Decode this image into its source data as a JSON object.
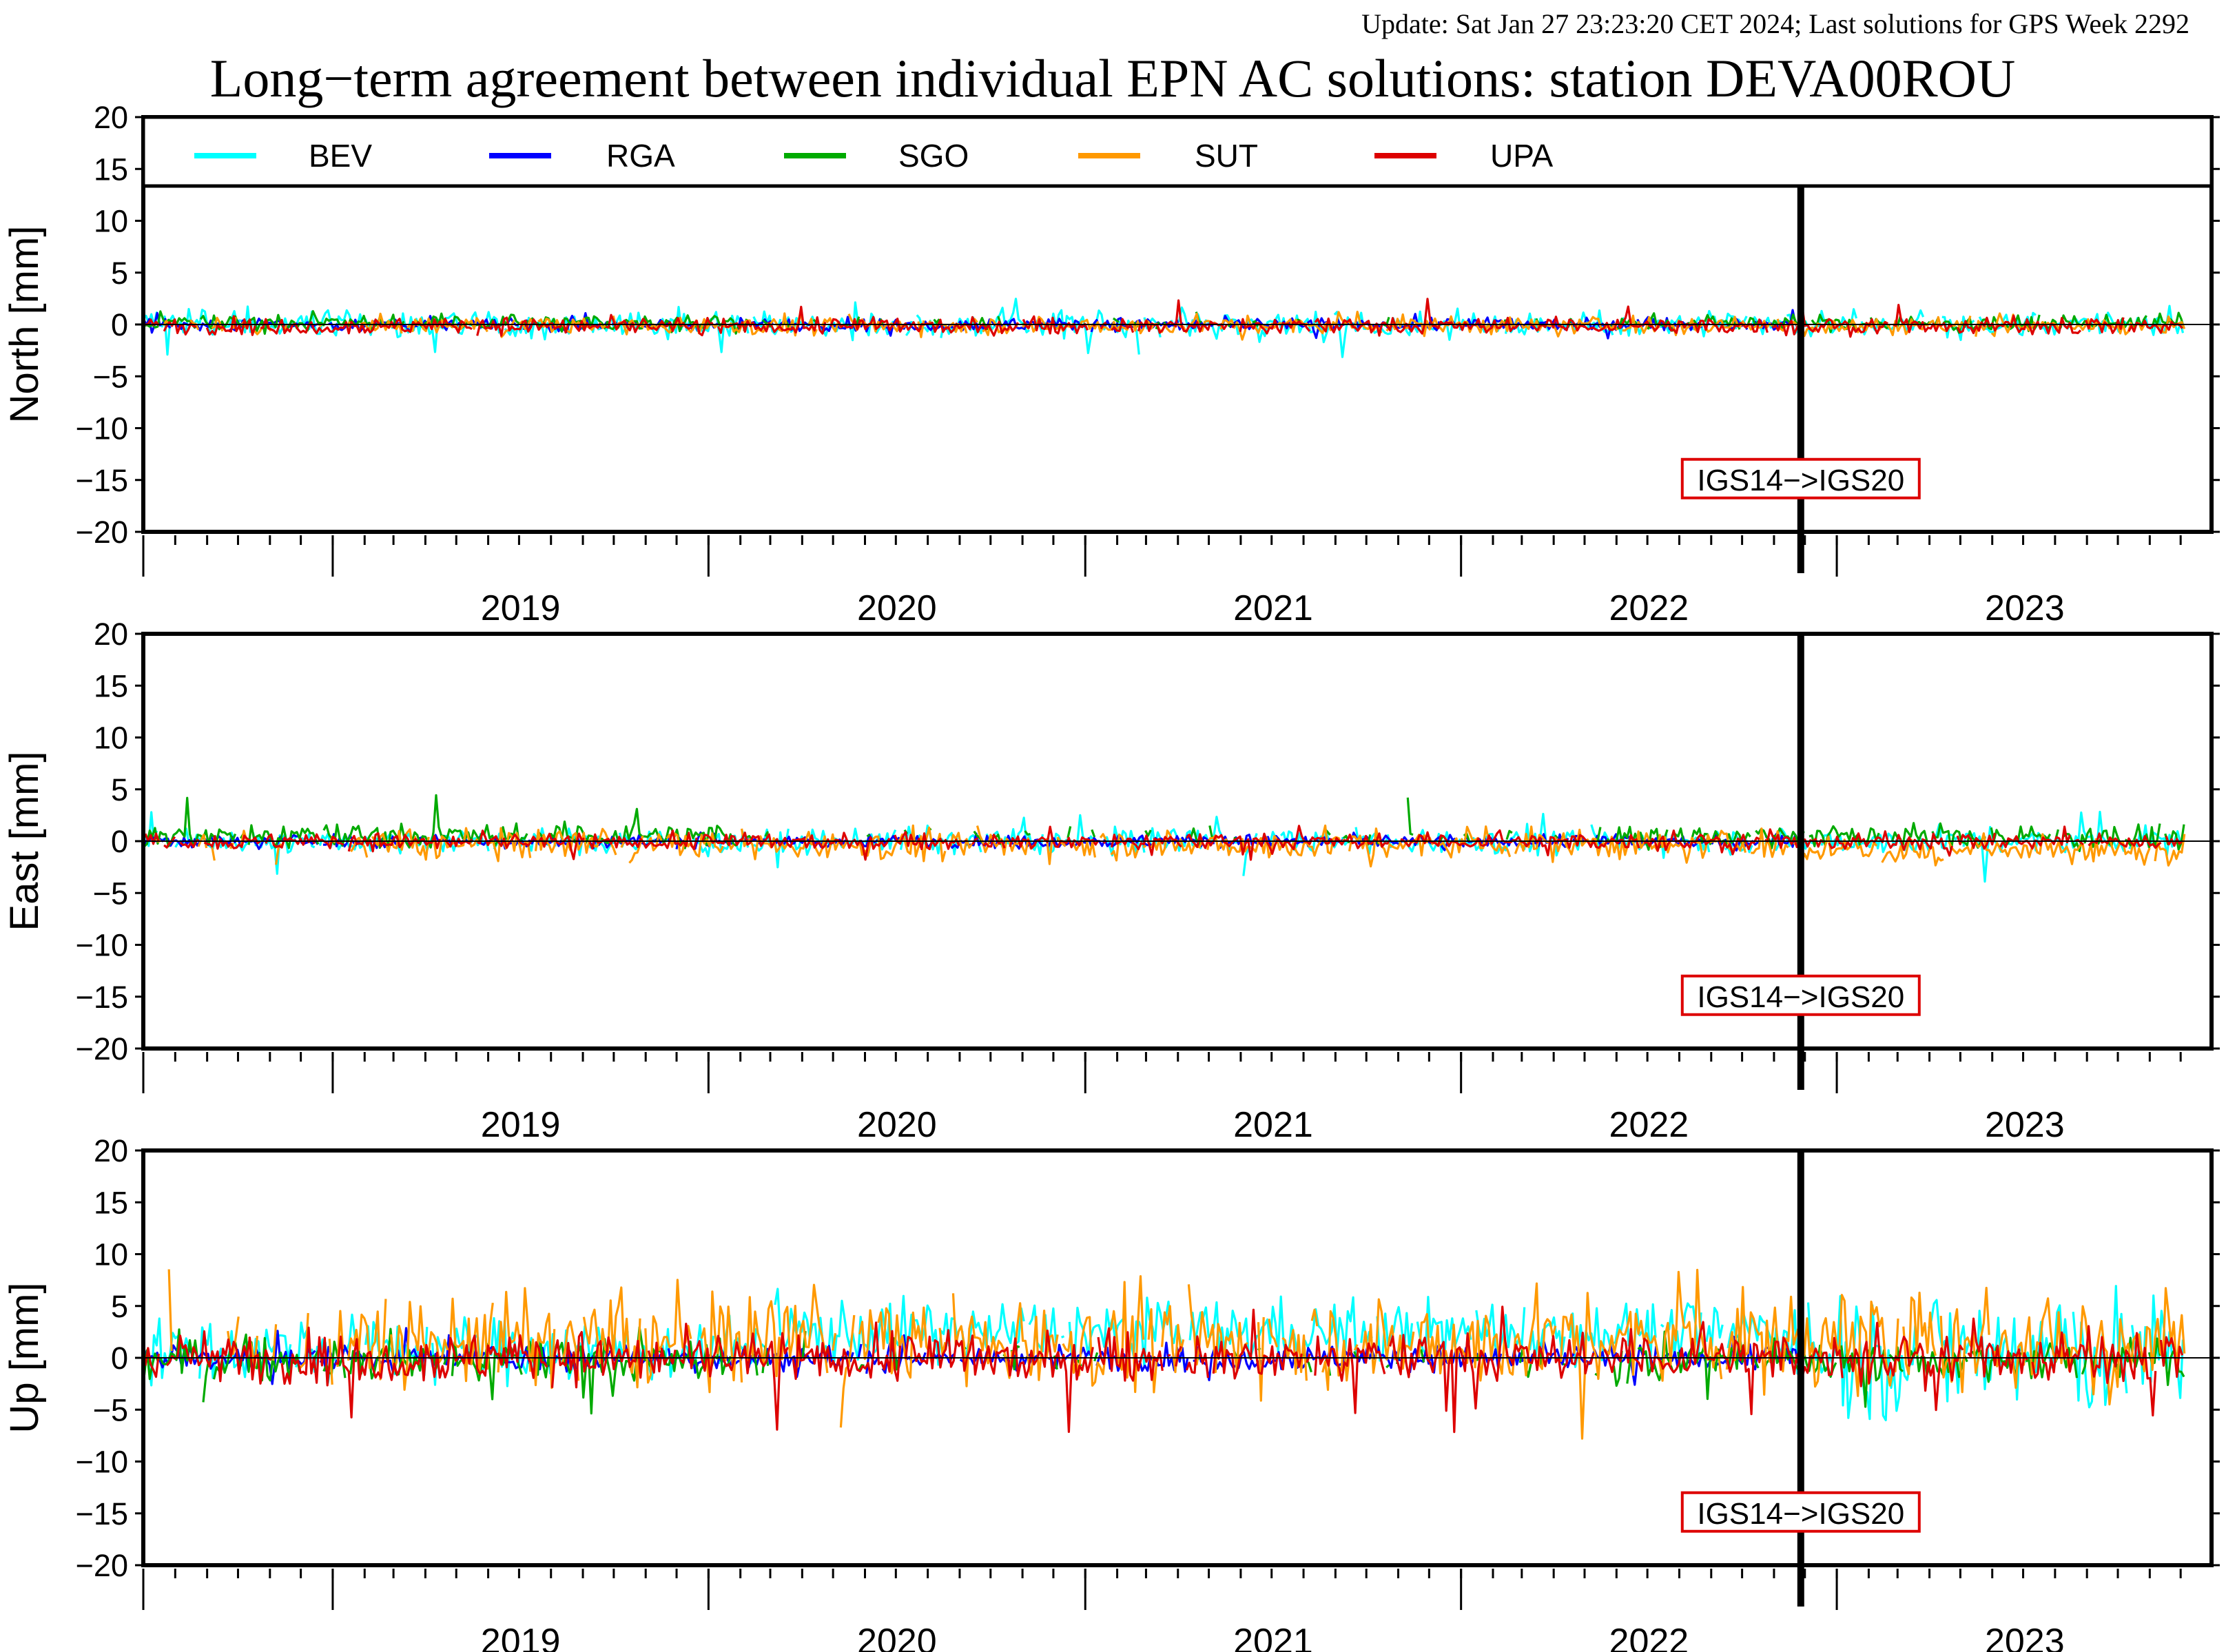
{
  "header": {
    "update_text": "Update: Sat Jan 27 23:23:20 CET 2024; Last solutions for GPS Week 2292",
    "update_color": "#8b1a1a",
    "title": "Long−term agreement between individual EPN AC solutions: station DEVA00ROU"
  },
  "chart_data": {
    "type": "line",
    "title": "Long−term agreement between individual EPN AC solutions: station DEVA00ROU",
    "x_range": [
      "2018-07-01",
      "2023-12-31"
    ],
    "year_labels": [
      "2019",
      "2020",
      "2021",
      "2022",
      "2023"
    ],
    "ylim": [
      -20,
      20
    ],
    "yticks": [
      20,
      15,
      10,
      5,
      0,
      -5,
      -10,
      -15,
      -20
    ],
    "ytick_labels": [
      "20",
      "15",
      "10",
      "5",
      "0",
      "−5",
      "−10",
      "−15",
      "−20"
    ],
    "grid": false,
    "legend_position": "top",
    "series": [
      {
        "name": "BEV",
        "color": "#00ffff"
      },
      {
        "name": "RGA",
        "color": "#0000ff"
      },
      {
        "name": "SGO",
        "color": "#00aa00"
      },
      {
        "name": "SUT",
        "color": "#ff9900"
      },
      {
        "name": "UPA",
        "color": "#dd0000"
      }
    ],
    "event": {
      "date": "2022-11-27",
      "label": "IGS14−>IGS20",
      "label_color": "#dd0000"
    },
    "panels": [
      {
        "ylabel": "North [mm]",
        "series_summary": {
          "BEV": {
            "typical_min": -1,
            "typical_max": 1,
            "extreme_min": -3.5,
            "extreme_max": 2.5
          },
          "RGA": {
            "typical_min": -0.5,
            "typical_max": 0.5,
            "extreme_min": -1.5,
            "extreme_max": 1.5
          },
          "SGO": {
            "typical_min": -0.5,
            "typical_max": 0.8,
            "extreme_min": -1,
            "extreme_max": 1.3
          },
          "SUT": {
            "typical_min": -0.8,
            "typical_max": 0.6,
            "extreme_min": -1.5,
            "extreme_max": 1.3
          },
          "UPA": {
            "typical_min": -0.8,
            "typical_max": 0.5,
            "extreme_min": -1.2,
            "extreme_max": 2.5
          }
        }
      },
      {
        "ylabel": "East [mm]",
        "series_summary": {
          "BEV": {
            "typical_min": -1,
            "typical_max": 1,
            "extreme_min": -4,
            "extreme_max": 3
          },
          "RGA": {
            "typical_min": -0.5,
            "typical_max": 0.5,
            "extreme_min": -1,
            "extreme_max": 1
          },
          "SGO": {
            "typical_min": -0.5,
            "typical_max": 1.5,
            "extreme_min": -1,
            "extreme_max": 4.5
          },
          "SUT": {
            "typical_min": -1.5,
            "typical_max": 0.8,
            "extreme_min": -2.5,
            "extreme_max": 1.5
          },
          "UPA": {
            "typical_min": -0.7,
            "typical_max": 0.6,
            "extreme_min": -2,
            "extreme_max": 1.5
          }
        }
      },
      {
        "ylabel": "Up [mm]",
        "series_summary": {
          "BEV": {
            "typical_min": -3,
            "typical_max": 5,
            "extreme_min": -10,
            "extreme_max": 11
          },
          "RGA": {
            "typical_min": -1,
            "typical_max": 1,
            "extreme_min": -3,
            "extreme_max": 3
          },
          "SGO": {
            "typical_min": -2,
            "typical_max": 1.5,
            "extreme_min": -6,
            "extreme_max": 3
          },
          "SUT": {
            "typical_min": -2,
            "typical_max": 5,
            "extreme_min": -8,
            "extreme_max": 9
          },
          "UPA": {
            "typical_min": -2,
            "typical_max": 2,
            "extreme_min": -8,
            "extreme_max": 5
          }
        }
      }
    ]
  }
}
